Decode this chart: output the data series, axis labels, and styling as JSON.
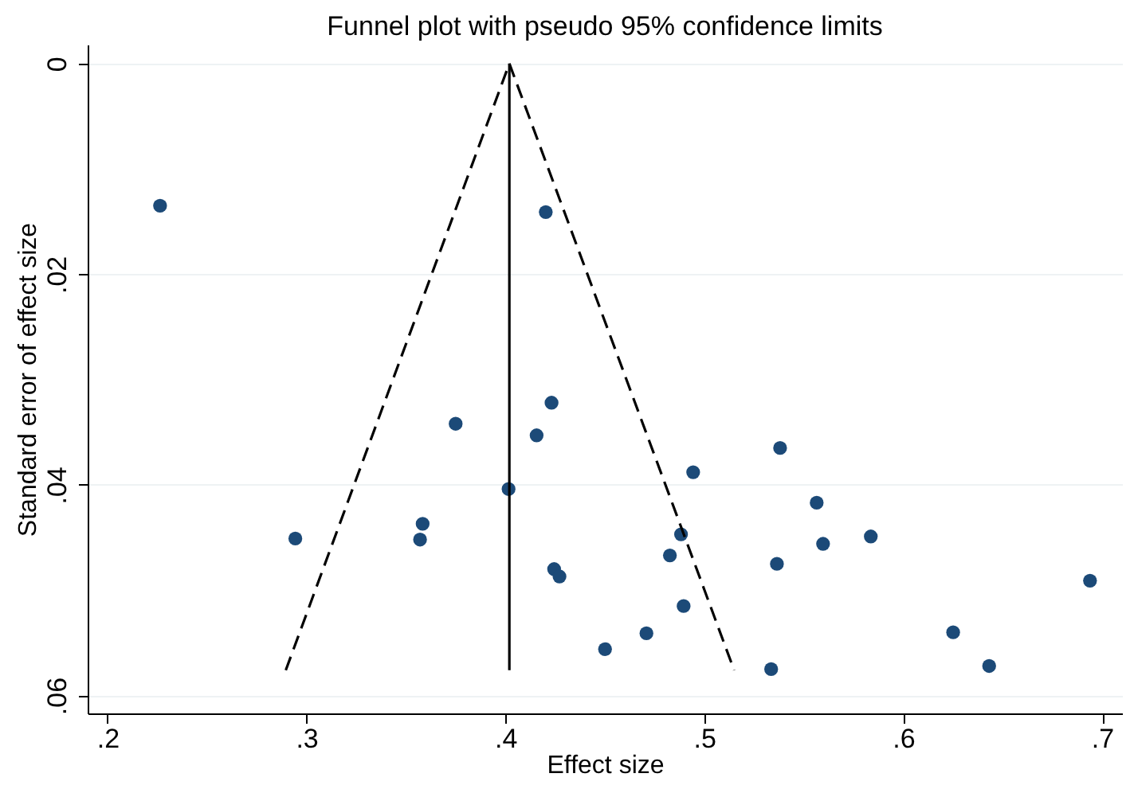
{
  "chart_data": {
    "type": "scatter",
    "title": "Funnel plot with pseudo 95% confidence limits",
    "xlabel": "Effect size",
    "ylabel": "Standard error of effect size",
    "xlim": [
      0.19,
      0.71
    ],
    "ylim": [
      0.0617,
      -0.0018
    ],
    "xticks": [
      {
        "value": 0.2,
        "label": ".2"
      },
      {
        "value": 0.3,
        "label": ".3"
      },
      {
        "value": 0.4,
        "label": ".4"
      },
      {
        "value": 0.5,
        "label": ".5"
      },
      {
        "value": 0.6,
        "label": ".6"
      },
      {
        "value": 0.7,
        "label": ".7"
      }
    ],
    "yticks": [
      0,
      {
        "value": 0.02,
        "label": ".02"
      },
      {
        "value": 0.04,
        "label": ".04"
      },
      {
        "value": 0.06,
        "label": ".06"
      }
    ],
    "grid": "y",
    "series": [
      {
        "color": "#1c4a78",
        "marker": "circle",
        "x": [
          0.2264,
          0.4203,
          0.4232,
          0.375,
          0.4157,
          0.4016,
          0.3584,
          0.2944,
          0.3571,
          0.4245,
          0.4272,
          0.5381,
          0.4944,
          0.5565,
          0.4883,
          0.5597,
          0.5837,
          0.4827,
          0.5365,
          0.6939,
          0.4896,
          0.4709,
          0.4501,
          0.6251,
          0.6432,
          0.5336
        ],
        "values": [
          0.0135,
          0.0141,
          0.0322,
          0.0342,
          0.0353,
          0.0404,
          0.0437,
          0.0451,
          0.0452,
          0.048,
          0.0487,
          0.0365,
          0.0388,
          0.0417,
          0.0447,
          0.0456,
          0.0449,
          0.0467,
          0.0475,
          0.0491,
          0.0515,
          0.0541,
          0.0556,
          0.054,
          0.0572,
          0.0575
        ]
      },
      {
        "type": "line",
        "color": "#000000",
        "line_style": "solid",
        "x": [
          0.402,
          0.402
        ],
        "values": [
          0,
          0.0576
        ]
      },
      {
        "type": "line",
        "color": "#000000",
        "line_style": "dashed",
        "x": [
          0.2896,
          0.402,
          0.515
        ],
        "values": [
          0.0576,
          0,
          0.0576
        ]
      }
    ]
  }
}
